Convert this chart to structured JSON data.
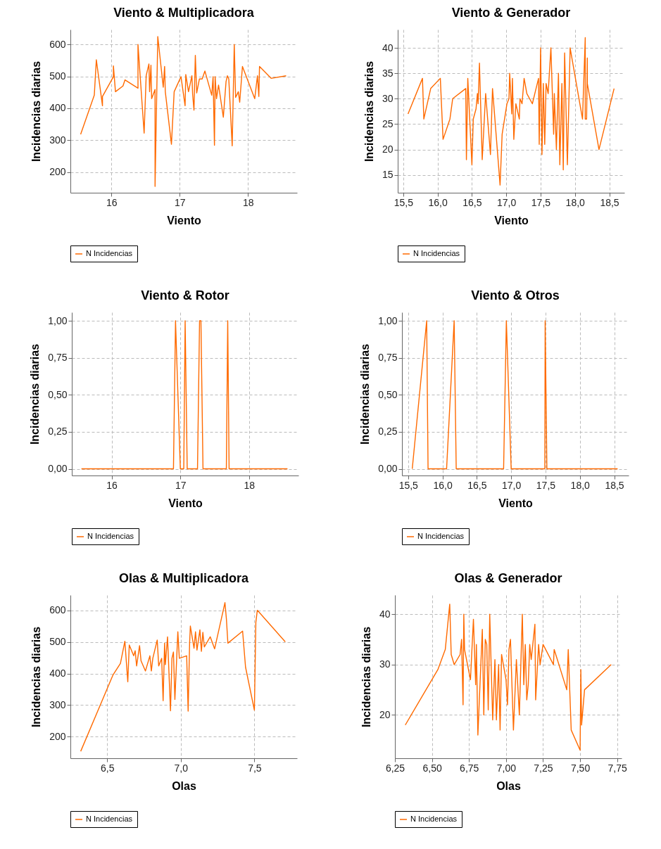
{
  "chart_data": [
    {
      "type": "line",
      "title": "Viento & Multiplicadora",
      "xlabel": "Viento",
      "ylabel": "Incidencias diarias",
      "grid": true,
      "legend": "bottom",
      "line_style": "solid",
      "xlim": [
        15.4,
        18.72
      ],
      "xticks": [
        16,
        17,
        18
      ],
      "ylim": [
        135,
        647
      ],
      "yticks": [
        200,
        300,
        400,
        500,
        600
      ],
      "x": [
        15.55,
        15.75,
        15.78,
        15.87,
        15.87,
        16.03,
        16.03,
        16.06,
        16.17,
        16.2,
        16.39,
        16.39,
        16.48,
        16.51,
        16.55,
        16.56,
        16.58,
        16.59,
        16.64,
        16.64,
        16.68,
        16.76,
        16.78,
        16.79,
        16.88,
        16.92,
        17.02,
        17.08,
        17.09,
        17.13,
        17.18,
        17.19,
        17.21,
        17.23,
        17.25,
        17.29,
        17.33,
        17.37,
        17.47,
        17.49,
        17.51,
        17.52,
        17.54,
        17.57,
        17.64,
        17.68,
        17.7,
        17.72,
        17.77,
        17.8,
        17.82,
        17.86,
        17.88,
        17.92,
        18.1,
        18.14,
        18.16,
        18.17,
        18.34,
        18.56
      ],
      "series": [
        {
          "name": "N Incidencias",
          "color": "#ff6a00",
          "values": [
            318,
            441,
            552,
            408,
            437,
            499,
            533,
            452,
            470,
            489,
            463,
            600,
            322,
            502,
            539,
            452,
            535,
            430,
            459,
            155,
            625,
            466,
            531,
            452,
            287,
            452,
            499,
            408,
            506,
            452,
            502,
            445,
            394,
            566,
            448,
            492,
            492,
            517,
            441,
            499,
            284,
            499,
            430,
            473,
            372,
            484,
            502,
            492,
            282,
            600,
            434,
            452,
            419,
            531,
            430,
            502,
            437,
            531,
            494,
            502
          ]
        }
      ]
    },
    {
      "type": "line",
      "title": "Viento & Generador",
      "xlabel": "Viento",
      "ylabel": "Incidencias diarias",
      "grid": true,
      "legend": "bottom",
      "line_style": "solid",
      "xlim": [
        15.42,
        18.72
      ],
      "xticks": [
        {
          "value": 15.5,
          "label": "15,5"
        },
        {
          "value": 16,
          "label": "16,0"
        },
        {
          "value": 16.5,
          "label": "16,5"
        },
        {
          "value": 17,
          "label": "17,0"
        },
        {
          "value": 17.5,
          "label": "17,5"
        },
        {
          "value": 18,
          "label": "18,0"
        },
        {
          "value": 18.5,
          "label": "18,5"
        }
      ],
      "ylim": [
        11.5,
        43.6
      ],
      "yticks": [
        15,
        20,
        25,
        30,
        35,
        40
      ],
      "x": [
        15.57,
        15.78,
        15.8,
        15.9,
        16.04,
        16.08,
        16.18,
        16.22,
        16.41,
        16.42,
        16.44,
        16.5,
        16.52,
        16.56,
        16.58,
        16.59,
        16.61,
        16.65,
        16.7,
        16.77,
        16.8,
        16.91,
        16.94,
        17.01,
        17.04,
        17.05,
        17.08,
        17.09,
        17.11,
        17.14,
        17.19,
        17.2,
        17.23,
        17.26,
        17.3,
        17.38,
        17.47,
        17.48,
        17.5,
        17.52,
        17.54,
        17.56,
        17.58,
        17.61,
        17.65,
        17.69,
        17.7,
        17.73,
        17.76,
        17.78,
        17.81,
        17.83,
        17.85,
        17.89,
        17.93,
        18.11,
        18.15,
        18.15,
        18.17,
        18.18,
        18.18,
        18.35,
        18.57
      ],
      "series": [
        {
          "name": "N Incidencias",
          "color": "#ff6a00",
          "values": [
            27,
            34,
            26,
            32,
            34,
            22,
            26,
            30,
            32,
            18,
            34,
            17,
            26,
            28,
            31,
            29,
            37,
            18,
            31,
            19,
            32,
            13,
            23,
            29,
            30,
            35,
            27,
            34,
            22,
            29,
            26,
            30,
            29,
            34,
            31,
            29,
            34,
            21,
            40,
            19,
            33,
            21,
            33,
            31,
            40,
            23,
            31,
            20,
            35,
            17,
            33,
            16,
            39,
            17,
            40,
            26,
            42,
            26,
            26,
            38,
            33,
            20,
            32
          ]
        }
      ]
    },
    {
      "type": "line",
      "title": "Viento & Rotor",
      "xlabel": "Viento",
      "ylabel": "Incidencias diarias",
      "grid": true,
      "legend": "bottom",
      "line_style": "solid",
      "xlim": [
        15.42,
        18.72
      ],
      "xticks": [
        16,
        17,
        18
      ],
      "ylim": [
        -0.045,
        1.057
      ],
      "yticks": [
        {
          "value": 0,
          "label": "0,00"
        },
        {
          "value": 0.25,
          "label": "0,25"
        },
        {
          "value": 0.5,
          "label": "0,50"
        },
        {
          "value": 0.75,
          "label": "0,75"
        },
        {
          "value": 1,
          "label": "1,00"
        }
      ],
      "x": [
        15.56,
        16.9,
        16.93,
        17.0,
        17.05,
        17.07,
        17.1,
        17.25,
        17.28,
        17.3,
        17.33,
        17.67,
        17.69,
        17.71,
        18.56
      ],
      "series": [
        {
          "name": "N Incidencias",
          "color": "#ff6a00",
          "values": [
            0,
            0,
            1,
            0,
            0,
            1,
            0,
            0,
            1,
            1,
            0,
            0,
            1,
            0,
            0
          ]
        }
      ]
    },
    {
      "type": "line",
      "title": "Viento & Otros",
      "xlabel": "Viento",
      "ylabel": "Incidencias diarias",
      "grid": true,
      "legend": "bottom",
      "line_style": "solid",
      "xlim": [
        15.41,
        18.71
      ],
      "xticks": [
        {
          "value": 15.5,
          "label": "15,5"
        },
        {
          "value": 16,
          "label": "16,0"
        },
        {
          "value": 16.5,
          "label": "16,5"
        },
        {
          "value": 17,
          "label": "17,0"
        },
        {
          "value": 17.5,
          "label": "17,5"
        },
        {
          "value": 18,
          "label": "18,0"
        },
        {
          "value": 18.5,
          "label": "18,5"
        }
      ],
      "ylim": [
        -0.045,
        1.057
      ],
      "yticks": [
        {
          "value": 0,
          "label": "0,00"
        },
        {
          "value": 0.25,
          "label": "0,25"
        },
        {
          "value": 0.5,
          "label": "0,50"
        },
        {
          "value": 0.75,
          "label": "0,75"
        },
        {
          "value": 1,
          "label": "1,00"
        }
      ],
      "x": [
        15.56,
        15.77,
        15.79,
        16.06,
        16.17,
        16.2,
        16.89,
        16.93,
        17.0,
        17.49,
        17.495,
        17.52,
        18.55
      ],
      "series": [
        {
          "name": "N Incidencias",
          "color": "#ff6a00",
          "values": [
            0,
            1,
            0,
            0,
            1,
            0,
            0,
            1,
            0,
            0,
            1,
            0,
            0
          ]
        }
      ]
    },
    {
      "type": "line",
      "title": "Olas & Multiplicadora",
      "xlabel": "Olas",
      "ylabel": "Incidencias diarias",
      "grid": true,
      "legend": "bottom",
      "line_style": "solid",
      "xlim": [
        6.25,
        7.79
      ],
      "xticks": [
        {
          "value": 6.5,
          "label": "6,5"
        },
        {
          "value": 7,
          "label": "7,0"
        },
        {
          "value": 7.5,
          "label": "7,5"
        }
      ],
      "ylim": [
        132,
        648
      ],
      "yticks": [
        200,
        300,
        400,
        500,
        600
      ],
      "x": [
        6.32,
        6.54,
        6.59,
        6.62,
        6.64,
        6.65,
        6.68,
        6.69,
        6.7,
        6.72,
        6.73,
        6.76,
        6.79,
        6.8,
        6.81,
        6.84,
        6.85,
        6.87,
        6.88,
        6.89,
        6.895,
        6.91,
        6.93,
        6.94,
        6.95,
        6.96,
        6.98,
        6.99,
        7.04,
        7.05,
        7.06,
        7.065,
        7.09,
        7.1,
        7.11,
        7.13,
        7.14,
        7.15,
        7.16,
        7.2,
        7.23,
        7.3,
        7.31,
        7.32,
        7.42,
        7.44,
        7.5,
        7.51,
        7.52,
        7.71
      ],
      "series": [
        {
          "name": "N Incidencias",
          "color": "#ff6a00",
          "values": [
            154,
            396,
            432,
            502,
            374,
            490,
            456,
            472,
            424,
            488,
            440,
            408,
            456,
            408,
            448,
            506,
            424,
            448,
            314,
            496,
            428,
            516,
            282,
            448,
            468,
            318,
            532,
            448,
            456,
            281,
            496,
            550,
            480,
            532,
            474,
            538,
            470,
            530,
            484,
            516,
            478,
            624,
            572,
            496,
            534,
            420,
            284,
            562,
            600,
            500
          ]
        }
      ]
    },
    {
      "type": "line",
      "title": "Olas & Generador",
      "xlabel": "Olas",
      "ylabel": "Incidencias diarias",
      "grid": true,
      "legend": "bottom",
      "line_style": "solid",
      "xlim": [
        6.25,
        7.78
      ],
      "xticks": [
        {
          "value": 6.25,
          "label": "6,25"
        },
        {
          "value": 6.5,
          "label": "6,50"
        },
        {
          "value": 6.75,
          "label": "6,75"
        },
        {
          "value": 7,
          "label": "7,00"
        },
        {
          "value": 7.25,
          "label": "7,25"
        },
        {
          "value": 7.5,
          "label": "7,50"
        },
        {
          "value": 7.75,
          "label": "7,75"
        }
      ],
      "ylim": [
        11.4,
        43.8
      ],
      "yticks": [
        20,
        30,
        40
      ],
      "x": [
        6.32,
        6.54,
        6.59,
        6.62,
        6.63,
        6.65,
        6.69,
        6.7,
        6.71,
        6.715,
        6.72,
        6.76,
        6.78,
        6.795,
        6.8,
        6.81,
        6.84,
        6.85,
        6.86,
        6.87,
        6.88,
        6.89,
        6.91,
        6.925,
        6.935,
        6.95,
        6.96,
        6.97,
        7.0,
        7.01,
        7.02,
        7.03,
        7.05,
        7.07,
        7.09,
        7.11,
        7.12,
        7.13,
        7.14,
        7.15,
        7.16,
        7.17,
        7.195,
        7.2,
        7.22,
        7.23,
        7.25,
        7.32,
        7.325,
        7.41,
        7.42,
        7.44,
        7.5,
        7.505,
        7.51,
        7.53,
        7.71
      ],
      "series": [
        {
          "name": "N Incidencias",
          "color": "#ff6a00",
          "values": [
            18,
            29,
            33,
            42,
            32,
            30,
            32,
            35,
            22,
            40,
            33,
            27,
            39,
            26,
            34,
            16,
            37,
            20,
            35,
            34,
            21,
            40,
            19,
            31,
            19,
            30,
            17,
            32,
            27,
            22,
            33,
            35,
            17,
            31,
            20,
            40,
            26,
            34,
            23,
            26,
            34,
            31,
            38,
            23,
            34,
            30,
            34,
            30,
            33,
            25,
            33,
            17,
            13,
            29,
            18,
            25,
            30
          ]
        }
      ]
    }
  ]
}
